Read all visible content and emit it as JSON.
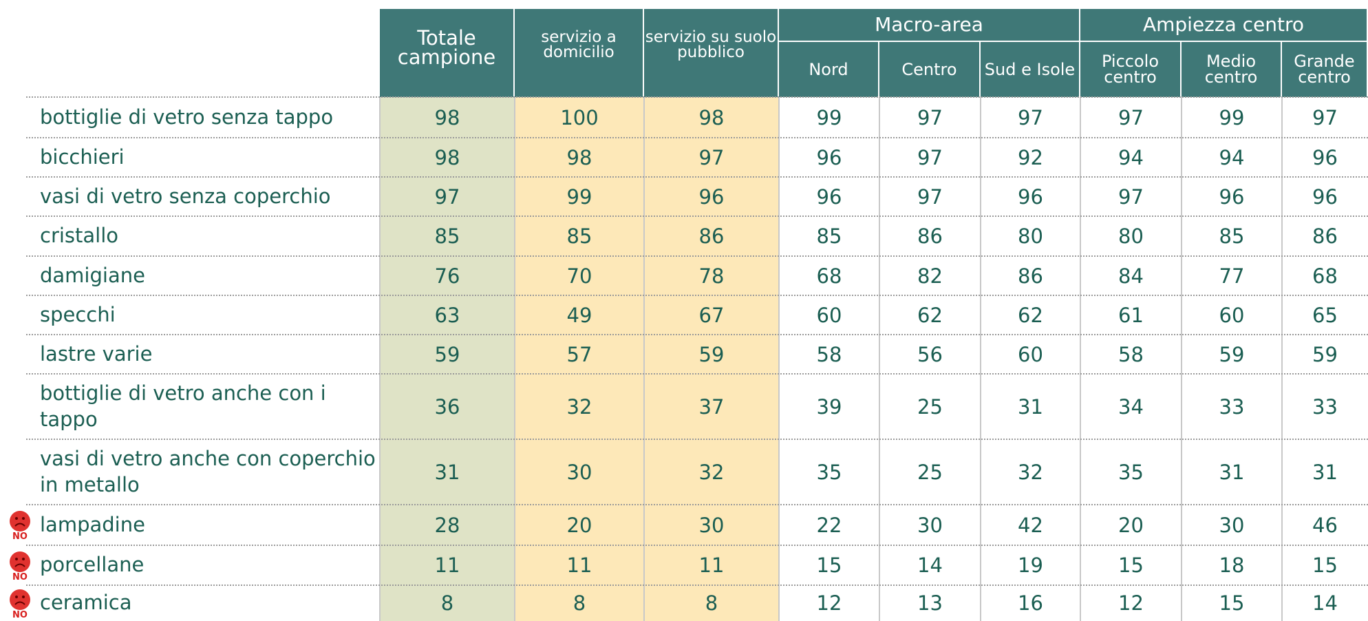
{
  "table": {
    "columns": [
      "Totale campione",
      "servizio a domicilio",
      "servizio su suolo pubblico"
    ],
    "groups": [
      {
        "label": "Macro-area",
        "columns": [
          "Nord",
          "Centro",
          "Sud e Isole"
        ]
      },
      {
        "label": "Ampiezza centro",
        "columns": [
          "Piccolo centro",
          "Medio centro",
          "Grande centro"
        ]
      }
    ],
    "rows": [
      {
        "label": "bottiglie di vetro senza tappo",
        "values": [
          98,
          100,
          98,
          99,
          97,
          97,
          97,
          99,
          97
        ]
      },
      {
        "label": "bicchieri",
        "values": [
          98,
          98,
          97,
          96,
          97,
          92,
          94,
          94,
          96
        ]
      },
      {
        "label": "vasi di vetro senza coperchio",
        "values": [
          97,
          99,
          96,
          96,
          97,
          96,
          97,
          96,
          96
        ]
      },
      {
        "label": "cristallo",
        "values": [
          85,
          85,
          86,
          85,
          86,
          80,
          80,
          85,
          86
        ]
      },
      {
        "label": "damigiane",
        "values": [
          76,
          70,
          78,
          68,
          82,
          86,
          84,
          77,
          68
        ]
      },
      {
        "label": "specchi",
        "values": [
          63,
          49,
          67,
          60,
          62,
          62,
          61,
          60,
          65
        ]
      },
      {
        "label": "lastre varie",
        "values": [
          59,
          57,
          59,
          58,
          56,
          60,
          58,
          59,
          59
        ]
      },
      {
        "label": "bottiglie di vetro anche con i tappo",
        "values": [
          36,
          32,
          37,
          39,
          25,
          31,
          34,
          33,
          33
        ]
      },
      {
        "label": "vasi di vetro anche con coperchio in metallo",
        "values": [
          31,
          30,
          32,
          35,
          25,
          32,
          35,
          31,
          31
        ]
      },
      {
        "label": "lampadine",
        "values": [
          28,
          20,
          30,
          22,
          30,
          42,
          20,
          30,
          46
        ],
        "marker": "NO"
      },
      {
        "label": "porcellane",
        "values": [
          11,
          11,
          11,
          15,
          14,
          19,
          15,
          18,
          15
        ],
        "marker": "NO"
      },
      {
        "label": "ceramica",
        "values": [
          8,
          8,
          8,
          12,
          13,
          16,
          12,
          15,
          14
        ],
        "marker": "NO"
      }
    ]
  }
}
